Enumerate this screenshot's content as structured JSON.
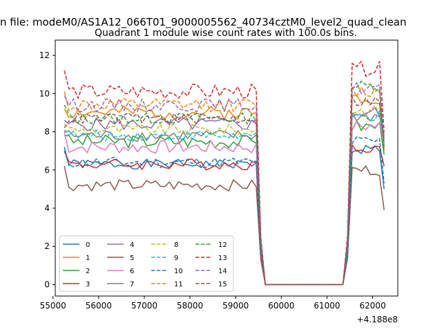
{
  "suptitle": "n file: modeM0/AS1A12_066T01_9000005562_40734cztM0_level2_quad_clean",
  "chart_data": {
    "type": "line",
    "title": "Quadrant 1 module wise count rates with 100.0s bins.",
    "xlabel": "",
    "ylabel": "",
    "x_offset_label": "+4.188e8",
    "x_offset": 418800000,
    "xlim": [
      55050,
      62550
    ],
    "ylim": [
      -0.6,
      12.8
    ],
    "xticks": [
      55000,
      56000,
      57000,
      58000,
      59000,
      60000,
      61000,
      62000
    ],
    "yticks": [
      0,
      2,
      4,
      6,
      8,
      10,
      12
    ],
    "legend": {
      "placement": "lower-left",
      "columns": 4
    },
    "x_start": 55250,
    "bin": 100,
    "active_end_1": 59450,
    "gap_start": 59650,
    "gap_end": 61350,
    "active_start_2": 61550,
    "x_end": 62250,
    "series": [
      {
        "name": "0",
        "color": "#1f77b4",
        "style": "solid",
        "level1": 6.3,
        "level2": 7.1,
        "ends": [
          7.2,
          1.6,
          1.6,
          5.0
        ],
        "amp": 0.25
      },
      {
        "name": "1",
        "color": "#ff7f0e",
        "style": "solid",
        "level1": 9.0,
        "level2": 9.8,
        "ends": [
          9.2,
          2.2,
          2.3,
          7.0
        ],
        "amp": 0.35
      },
      {
        "name": "2",
        "color": "#2ca02c",
        "style": "solid",
        "level1": 7.5,
        "level2": 8.3,
        "ends": [
          7.8,
          1.9,
          2.0,
          6.8
        ],
        "amp": 0.35
      },
      {
        "name": "3",
        "color": "#d62728",
        "style": "solid",
        "level1": 6.3,
        "level2": 7.2,
        "ends": [
          7.0,
          1.6,
          1.7,
          6.2
        ],
        "amp": 0.3
      },
      {
        "name": "4",
        "color": "#9467bd",
        "style": "solid",
        "level1": 8.4,
        "level2": 9.0,
        "ends": [
          8.6,
          2.1,
          2.1,
          7.5
        ],
        "amp": 0.35
      },
      {
        "name": "5",
        "color": "#8c564b",
        "style": "solid",
        "level1": 5.2,
        "level2": 6.0,
        "ends": [
          6.2,
          1.3,
          1.4,
          3.9
        ],
        "amp": 0.3
      },
      {
        "name": "6",
        "color": "#e377c2",
        "style": "solid",
        "level1": 7.2,
        "level2": 8.3,
        "ends": [
          8.0,
          1.8,
          1.9,
          7.3
        ],
        "amp": 0.35
      },
      {
        "name": "7",
        "color": "#7f7f7f",
        "style": "solid",
        "level1": 7.8,
        "level2": 8.8,
        "ends": [
          8.0,
          1.9,
          2.0,
          7.8
        ],
        "amp": 0.3
      },
      {
        "name": "8",
        "color": "#bcbd22",
        "style": "dashed",
        "level1": 8.1,
        "level2": 9.1,
        "ends": [
          8.4,
          2.0,
          2.1,
          7.7
        ],
        "amp": 0.3
      },
      {
        "name": "9",
        "color": "#17becf",
        "style": "dashed",
        "level1": 7.8,
        "level2": 8.8,
        "ends": [
          8.1,
          1.9,
          2.0,
          7.4
        ],
        "amp": 0.3
      },
      {
        "name": "10",
        "color": "#1f77b4",
        "style": "dashed",
        "level1": 6.4,
        "level2": 7.5,
        "ends": [
          7.0,
          1.6,
          1.6,
          5.3
        ],
        "amp": 0.3
      },
      {
        "name": "11",
        "color": "#ff7f0e",
        "style": "dashed",
        "level1": 9.4,
        "level2": 10.1,
        "ends": [
          10.1,
          2.3,
          2.3,
          7.2
        ],
        "amp": 0.35
      },
      {
        "name": "12",
        "color": "#2ca02c",
        "style": "dashed",
        "level1": 8.7,
        "level2": 10.4,
        "ends": [
          9.4,
          2.1,
          2.2,
          7.1
        ],
        "amp": 0.3
      },
      {
        "name": "13",
        "color": "#d62728",
        "style": "dashed",
        "level1": 10.1,
        "level2": 11.3,
        "ends": [
          11.2,
          2.5,
          2.6,
          8.0
        ],
        "amp": 0.4
      },
      {
        "name": "14",
        "color": "#9467bd",
        "style": "dashed",
        "level1": 9.4,
        "level2": 10.3,
        "ends": [
          9.9,
          2.3,
          2.3,
          7.8
        ],
        "amp": 0.35
      },
      {
        "name": "15",
        "color": "#8c564b",
        "style": "dashed",
        "level1": 8.7,
        "level2": 9.6,
        "ends": [
          8.2,
          2.1,
          2.2,
          7.6
        ],
        "amp": 0.3
      }
    ]
  }
}
